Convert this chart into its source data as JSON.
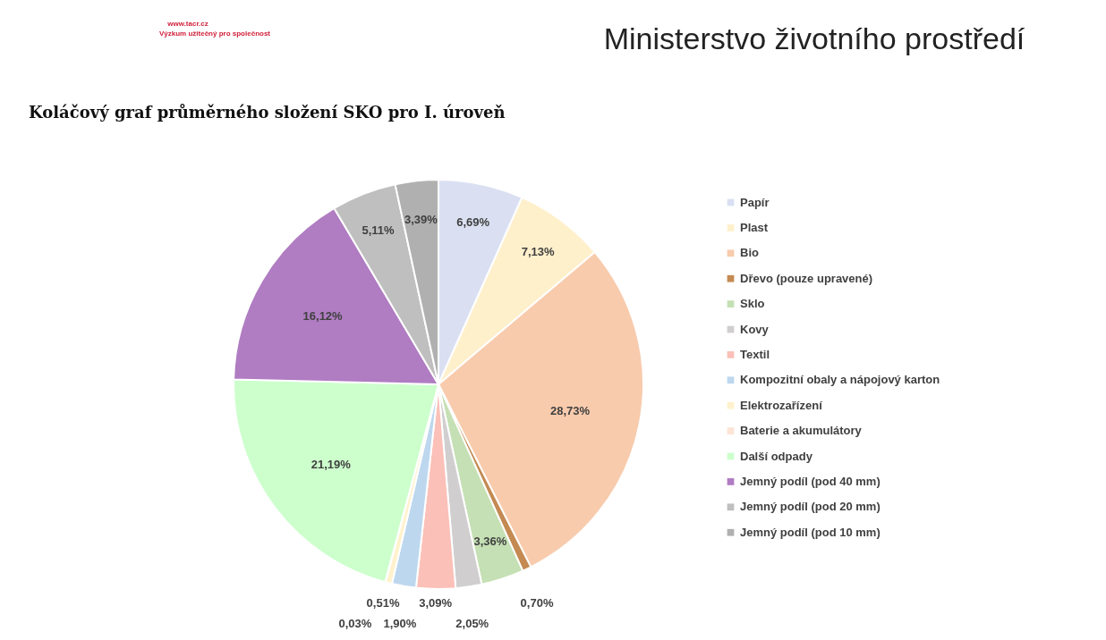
{
  "chart_data": {
    "type": "pie",
    "title": "Koláčový graf průměrného složení SKO pro I. úroveň",
    "categories": [
      "Papír",
      "Plast",
      "Bio",
      "Dřevo (pouze upravené)",
      "Sklo",
      "Kovy",
      "Textil",
      "Kompozitní obaly a nápojový karton",
      "Elektrozařízení",
      "Baterie a akumulátory",
      "Další odpady",
      "Jemný podíl (pod 40 mm)",
      "Jemný podíl (pod 20 mm)",
      "Jemný podíl (pod 10 mm)"
    ],
    "values": [
      6.69,
      7.13,
      28.73,
      0.7,
      3.36,
      2.05,
      3.09,
      1.9,
      0.51,
      0.03,
      21.19,
      16.12,
      5.11,
      3.39
    ],
    "value_labels": [
      "6,69%",
      "7,13%",
      "28,73%",
      "0,70%",
      "3,36%",
      "2,05%",
      "3,09%",
      "1,90%",
      "0,51%",
      "0,03%",
      "21,19%",
      "16,12%",
      "5,11%",
      "3,39%"
    ],
    "colors": [
      "#dae0f2",
      "#fff0cc",
      "#f8cbad",
      "#c48a52",
      "#c5e0b4",
      "#d0cece",
      "#fbc0b8",
      "#bdd7ee",
      "#fff2cc",
      "#fce4d6",
      "#ccffcc",
      "#b07cc2",
      "#bfbfbf",
      "#b0b0b0"
    ],
    "legend": "right",
    "annotations": [
      "Ministerstvo životního prostředí",
      "www.tacr.cz",
      "Výzkum užitečný pro společnost"
    ]
  }
}
